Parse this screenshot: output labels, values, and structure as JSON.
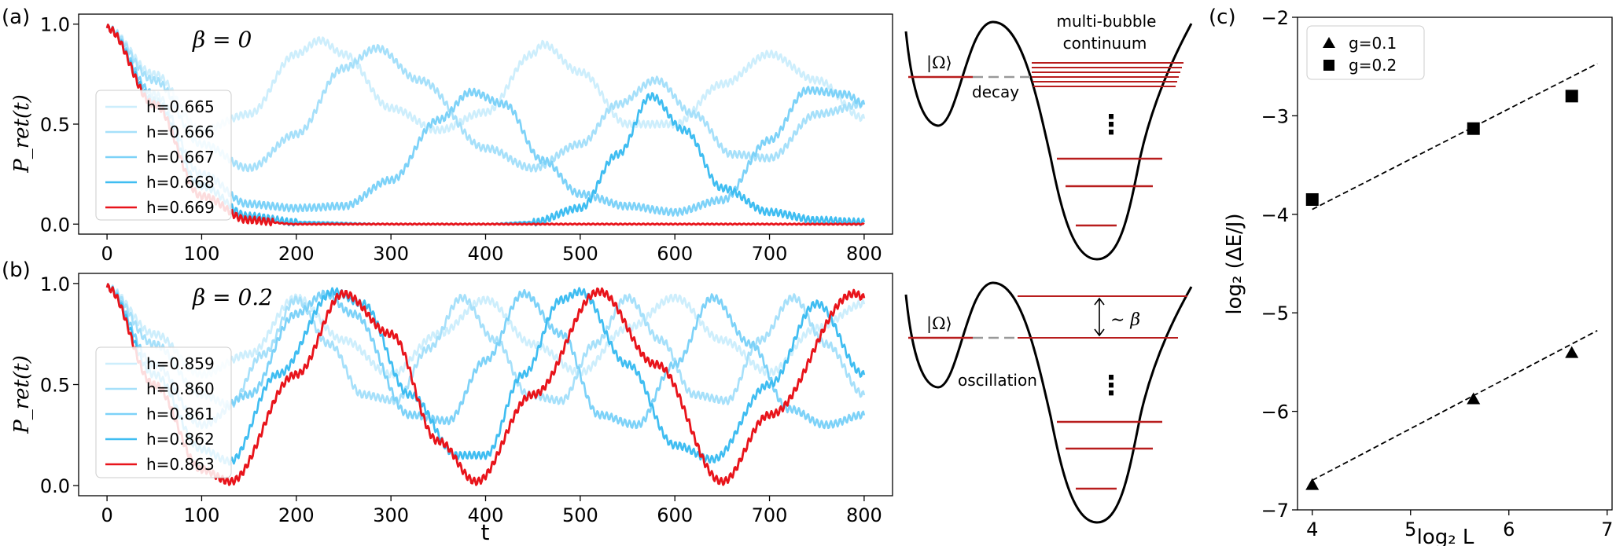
{
  "panels": {
    "a": {
      "label": "(a)",
      "beta_label": "β = 0",
      "ylabel": "P_ret(t)",
      "xticks": [
        "0",
        "100",
        "200",
        "300",
        "400",
        "500",
        "600",
        "700",
        "800"
      ],
      "yticks": [
        "0.0",
        "0.5",
        "1.0"
      ],
      "legend": [
        "h=0.665",
        "h=0.666",
        "h=0.667",
        "h=0.668",
        "h=0.669"
      ]
    },
    "b": {
      "label": "(b)",
      "beta_label": "β = 0.2",
      "ylabel": "P_ret(t)",
      "xlabel": "t",
      "xticks": [
        "0",
        "100",
        "200",
        "300",
        "400",
        "500",
        "600",
        "700",
        "800"
      ],
      "yticks": [
        "0.0",
        "0.5",
        "1.0"
      ],
      "legend": [
        "h=0.859",
        "h=0.860",
        "h=0.861",
        "h=0.862",
        "h=0.863"
      ]
    },
    "c": {
      "label": "(c)",
      "xlabel": "log₂ L",
      "ylabel": "log₂ (ΔE/J)",
      "xticks": [
        "4",
        "5",
        "6",
        "7"
      ],
      "yticks": [
        "−2",
        "−3",
        "−4",
        "−5",
        "−6",
        "−7"
      ],
      "legend": [
        "g=0.1",
        "g=0.2"
      ]
    }
  },
  "diagram_top": {
    "state": "|Ω⟩",
    "transition": "decay",
    "continuum_line1": "multi-bubble",
    "continuum_line2": "continuum",
    "dots": "⋮"
  },
  "diagram_bottom": {
    "state": "|Ω⟩",
    "transition": "oscillation",
    "spacing": "∼ β",
    "dots": "⋮"
  },
  "colors": {
    "series": [
      "#cdeefc",
      "#a6e0fa",
      "#7dd2f8",
      "#3fbdf1",
      "#e8141b"
    ],
    "level": "#b81d1d",
    "dashed": "#999999"
  },
  "chart_data": [
    {
      "type": "line",
      "title": "β = 0",
      "xlabel": "",
      "ylabel": "P_ret(t)",
      "xlim": [
        -30,
        830
      ],
      "ylim": [
        -0.05,
        1.05
      ],
      "series": [
        {
          "name": "h=0.665",
          "x": [
            0,
            50,
            100,
            150,
            200,
            225,
            250,
            300,
            350,
            400,
            450,
            460,
            500,
            550,
            600,
            650,
            700,
            750,
            800
          ],
          "y": [
            0.98,
            0.75,
            0.47,
            0.55,
            0.85,
            0.92,
            0.85,
            0.58,
            0.47,
            0.56,
            0.85,
            0.9,
            0.76,
            0.5,
            0.5,
            0.7,
            0.85,
            0.72,
            0.53
          ]
        },
        {
          "name": "h=0.666",
          "x": [
            0,
            50,
            100,
            150,
            200,
            250,
            285,
            330,
            400,
            450,
            500,
            540,
            580,
            620,
            660,
            700,
            750,
            800
          ],
          "y": [
            0.98,
            0.72,
            0.4,
            0.28,
            0.45,
            0.78,
            0.88,
            0.72,
            0.38,
            0.28,
            0.4,
            0.6,
            0.72,
            0.55,
            0.35,
            0.33,
            0.55,
            0.6
          ]
        },
        {
          "name": "h=0.667",
          "x": [
            0,
            50,
            100,
            150,
            200,
            250,
            300,
            350,
            385,
            420,
            460,
            500,
            550,
            600,
            650,
            700,
            740,
            780,
            800
          ],
          "y": [
            0.98,
            0.65,
            0.25,
            0.1,
            0.08,
            0.09,
            0.22,
            0.52,
            0.66,
            0.6,
            0.32,
            0.15,
            0.09,
            0.06,
            0.12,
            0.42,
            0.67,
            0.65,
            0.6
          ]
        },
        {
          "name": "h=0.668",
          "x": [
            0,
            50,
            100,
            150,
            200,
            300,
            400,
            450,
            500,
            540,
            575,
            610,
            650,
            700,
            750,
            800
          ],
          "y": [
            0.98,
            0.62,
            0.19,
            0.04,
            0.01,
            0.0,
            0.0,
            0.01,
            0.08,
            0.35,
            0.64,
            0.47,
            0.18,
            0.06,
            0.02,
            0.01
          ]
        },
        {
          "name": "h=0.669",
          "x": [
            0,
            50,
            100,
            150,
            200,
            300,
            400,
            500,
            600,
            700,
            800
          ],
          "y": [
            0.98,
            0.6,
            0.14,
            0.02,
            0.0,
            0.0,
            0.0,
            0.0,
            0.0,
            0.0,
            0.0
          ]
        }
      ]
    },
    {
      "type": "line",
      "title": "β = 0.2",
      "xlabel": "t",
      "ylabel": "P_ret(t)",
      "xlim": [
        -30,
        830
      ],
      "ylim": [
        -0.05,
        1.05
      ],
      "series": [
        {
          "name": "h=0.859",
          "x": [
            0,
            50,
            100,
            150,
            200,
            250,
            300,
            350,
            400,
            450,
            500,
            550,
            600,
            650,
            700,
            750,
            800
          ],
          "y": [
            0.98,
            0.75,
            0.55,
            0.65,
            0.93,
            0.72,
            0.55,
            0.75,
            0.92,
            0.7,
            0.56,
            0.78,
            0.93,
            0.72,
            0.56,
            0.78,
            0.9
          ]
        },
        {
          "name": "h=0.860",
          "x": [
            0,
            50,
            100,
            130,
            165,
            200,
            235,
            270,
            305,
            340,
            375,
            410,
            445,
            480,
            515,
            550,
            585,
            620,
            655,
            690,
            725,
            760,
            800
          ],
          "y": [
            0.98,
            0.7,
            0.45,
            0.4,
            0.65,
            0.92,
            0.7,
            0.45,
            0.42,
            0.68,
            0.93,
            0.72,
            0.45,
            0.42,
            0.7,
            0.93,
            0.72,
            0.45,
            0.42,
            0.72,
            0.93,
            0.7,
            0.45
          ]
        },
        {
          "name": "h=0.861",
          "x": [
            0,
            50,
            100,
            150,
            200,
            230,
            260,
            320,
            360,
            400,
            440,
            480,
            520,
            560,
            600,
            640,
            680,
            720,
            760,
            800
          ],
          "y": [
            0.98,
            0.6,
            0.3,
            0.45,
            0.85,
            0.95,
            0.85,
            0.35,
            0.32,
            0.62,
            0.95,
            0.75,
            0.35,
            0.3,
            0.6,
            0.93,
            0.7,
            0.38,
            0.3,
            0.35
          ]
        },
        {
          "name": "h=0.862",
          "x": [
            0,
            50,
            100,
            130,
            180,
            240,
            270,
            320,
            370,
            400,
            440,
            480,
            500,
            550,
            600,
            640,
            700,
            750,
            800
          ],
          "y": [
            0.98,
            0.55,
            0.18,
            0.12,
            0.55,
            0.96,
            0.9,
            0.45,
            0.15,
            0.15,
            0.55,
            0.92,
            0.96,
            0.6,
            0.2,
            0.13,
            0.5,
            0.9,
            0.55
          ]
        },
        {
          "name": "h=0.863",
          "x": [
            0,
            50,
            100,
            130,
            200,
            250,
            300,
            350,
            390,
            450,
            520,
            580,
            650,
            700,
            790,
            800
          ],
          "y": [
            0.98,
            0.5,
            0.08,
            0.02,
            0.55,
            0.95,
            0.75,
            0.22,
            0.02,
            0.45,
            0.96,
            0.6,
            0.02,
            0.35,
            0.95,
            0.93
          ]
        }
      ]
    },
    {
      "type": "scatter",
      "xlabel": "log₂ L",
      "ylabel": "log₂ (ΔE/J)",
      "xlim": [
        3.85,
        7.05
      ],
      "ylim": [
        -7,
        -2
      ],
      "series": [
        {
          "name": "g=0.1",
          "marker": "triangle",
          "x": [
            4.0,
            5.64,
            6.64
          ],
          "y": [
            -6.75,
            -5.88,
            -5.41
          ],
          "fit": [
            [
              4.0,
              -6.7
            ],
            [
              6.9,
              -5.18
            ]
          ]
        },
        {
          "name": "g=0.2",
          "marker": "square",
          "x": [
            4.0,
            5.64,
            6.64
          ],
          "y": [
            -3.85,
            -3.13,
            -2.8
          ],
          "fit": [
            [
              4.0,
              -3.95
            ],
            [
              6.9,
              -2.47
            ]
          ]
        }
      ]
    }
  ]
}
